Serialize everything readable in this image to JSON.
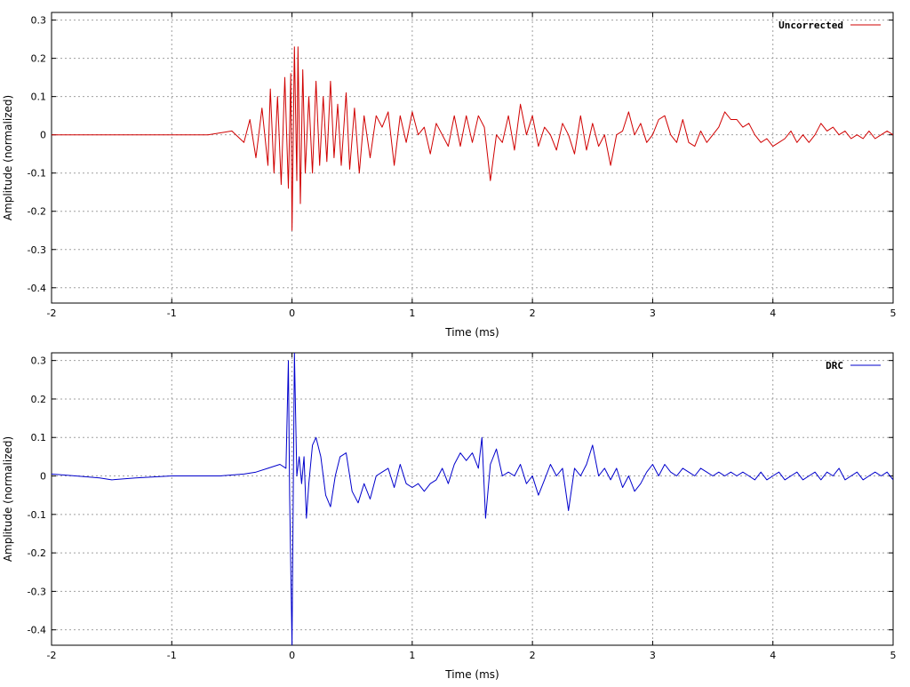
{
  "chart_data": [
    {
      "type": "line",
      "title": "",
      "xlabel": "Time (ms)",
      "ylabel": "Amplitude (normalized)",
      "xlim": [
        -2,
        5
      ],
      "ylim": [
        -0.44,
        0.32
      ],
      "xticks": [
        -2,
        -1,
        0,
        1,
        2,
        3,
        4,
        5
      ],
      "yticks": [
        0.3,
        0.2,
        0.1,
        0,
        -0.1,
        -0.2,
        -0.3,
        -0.4
      ],
      "xtick_labels": [
        "-2",
        "-1",
        "0",
        "1",
        "2",
        "3",
        "4",
        "5"
      ],
      "ytick_labels": [
        "0.3",
        "0.2",
        "0.1",
        "0",
        "-0.1",
        "-0.2",
        "-0.3",
        "-0.4"
      ],
      "grid": true,
      "legend_position": "top-right",
      "series": [
        {
          "name": "Uncorrected",
          "color": "#d00000",
          "points": [
            [
              -2.0,
              0.0
            ],
            [
              -1.35,
              0.0
            ],
            [
              -1.0,
              0.0
            ],
            [
              -0.7,
              0.0
            ],
            [
              -0.5,
              0.01
            ],
            [
              -0.4,
              -0.02
            ],
            [
              -0.35,
              0.04
            ],
            [
              -0.3,
              -0.06
            ],
            [
              -0.25,
              0.07
            ],
            [
              -0.2,
              -0.08
            ],
            [
              -0.18,
              0.12
            ],
            [
              -0.15,
              -0.1
            ],
            [
              -0.12,
              0.1
            ],
            [
              -0.09,
              -0.13
            ],
            [
              -0.06,
              0.15
            ],
            [
              -0.03,
              -0.14
            ],
            [
              -0.01,
              0.16
            ],
            [
              0.0,
              -0.25
            ],
            [
              0.02,
              0.23
            ],
            [
              0.04,
              -0.12
            ],
            [
              0.05,
              0.23
            ],
            [
              0.07,
              -0.18
            ],
            [
              0.09,
              0.17
            ],
            [
              0.11,
              -0.1
            ],
            [
              0.14,
              0.1
            ],
            [
              0.17,
              -0.1
            ],
            [
              0.2,
              0.14
            ],
            [
              0.23,
              -0.08
            ],
            [
              0.26,
              0.1
            ],
            [
              0.29,
              -0.07
            ],
            [
              0.32,
              0.14
            ],
            [
              0.35,
              -0.06
            ],
            [
              0.38,
              0.08
            ],
            [
              0.41,
              -0.08
            ],
            [
              0.45,
              0.11
            ],
            [
              0.48,
              -0.09
            ],
            [
              0.52,
              0.07
            ],
            [
              0.56,
              -0.1
            ],
            [
              0.6,
              0.05
            ],
            [
              0.65,
              -0.06
            ],
            [
              0.7,
              0.05
            ],
            [
              0.75,
              0.02
            ],
            [
              0.8,
              0.06
            ],
            [
              0.85,
              -0.08
            ],
            [
              0.9,
              0.05
            ],
            [
              0.95,
              -0.02
            ],
            [
              1.0,
              0.06
            ],
            [
              1.05,
              0.0
            ],
            [
              1.1,
              0.02
            ],
            [
              1.15,
              -0.05
            ],
            [
              1.2,
              0.03
            ],
            [
              1.3,
              -0.03
            ],
            [
              1.35,
              0.05
            ],
            [
              1.4,
              -0.03
            ],
            [
              1.45,
              0.05
            ],
            [
              1.5,
              -0.02
            ],
            [
              1.55,
              0.05
            ],
            [
              1.6,
              0.02
            ],
            [
              1.65,
              -0.12
            ],
            [
              1.7,
              0.0
            ],
            [
              1.75,
              -0.02
            ],
            [
              1.8,
              0.05
            ],
            [
              1.85,
              -0.04
            ],
            [
              1.9,
              0.08
            ],
            [
              1.95,
              0.0
            ],
            [
              2.0,
              0.05
            ],
            [
              2.05,
              -0.03
            ],
            [
              2.1,
              0.02
            ],
            [
              2.15,
              0.0
            ],
            [
              2.2,
              -0.04
            ],
            [
              2.25,
              0.03
            ],
            [
              2.3,
              0.0
            ],
            [
              2.35,
              -0.05
            ],
            [
              2.4,
              0.05
            ],
            [
              2.45,
              -0.04
            ],
            [
              2.5,
              0.03
            ],
            [
              2.55,
              -0.03
            ],
            [
              2.6,
              0.0
            ],
            [
              2.65,
              -0.08
            ],
            [
              2.7,
              0.0
            ],
            [
              2.75,
              0.01
            ],
            [
              2.8,
              0.06
            ],
            [
              2.85,
              0.0
            ],
            [
              2.9,
              0.03
            ],
            [
              2.95,
              -0.02
            ],
            [
              3.0,
              0.0
            ],
            [
              3.05,
              0.04
            ],
            [
              3.1,
              0.05
            ],
            [
              3.15,
              0.0
            ],
            [
              3.2,
              -0.02
            ],
            [
              3.25,
              0.04
            ],
            [
              3.3,
              -0.02
            ],
            [
              3.35,
              -0.03
            ],
            [
              3.4,
              0.01
            ],
            [
              3.45,
              -0.02
            ],
            [
              3.5,
              0.0
            ],
            [
              3.55,
              0.02
            ],
            [
              3.6,
              0.06
            ],
            [
              3.65,
              0.04
            ],
            [
              3.7,
              0.04
            ],
            [
              3.75,
              0.02
            ],
            [
              3.8,
              0.03
            ],
            [
              3.85,
              0.0
            ],
            [
              3.9,
              -0.02
            ],
            [
              3.95,
              -0.01
            ],
            [
              4.0,
              -0.03
            ],
            [
              4.05,
              -0.02
            ],
            [
              4.1,
              -0.01
            ],
            [
              4.15,
              0.01
            ],
            [
              4.2,
              -0.02
            ],
            [
              4.25,
              0.0
            ],
            [
              4.3,
              -0.02
            ],
            [
              4.35,
              0.0
            ],
            [
              4.4,
              0.03
            ],
            [
              4.45,
              0.01
            ],
            [
              4.5,
              0.02
            ],
            [
              4.55,
              0.0
            ],
            [
              4.6,
              0.01
            ],
            [
              4.65,
              -0.01
            ],
            [
              4.7,
              0.0
            ],
            [
              4.75,
              -0.01
            ],
            [
              4.8,
              0.01
            ],
            [
              4.85,
              -0.01
            ],
            [
              4.9,
              0.0
            ],
            [
              4.95,
              0.01
            ],
            [
              5.0,
              0.0
            ]
          ]
        }
      ]
    },
    {
      "type": "line",
      "title": "",
      "xlabel": "Time (ms)",
      "ylabel": "Amplitude (normalized)",
      "xlim": [
        -2,
        5
      ],
      "ylim": [
        -0.44,
        0.32
      ],
      "xticks": [
        -2,
        -1,
        0,
        1,
        2,
        3,
        4,
        5
      ],
      "yticks": [
        0.3,
        0.2,
        0.1,
        0,
        -0.1,
        -0.2,
        -0.3,
        -0.4
      ],
      "xtick_labels": [
        "-2",
        "-1",
        "0",
        "1",
        "2",
        "3",
        "4",
        "5"
      ],
      "ytick_labels": [
        "0.3",
        "0.2",
        "0.1",
        "0",
        "-0.1",
        "-0.2",
        "-0.3",
        "-0.4"
      ],
      "grid": true,
      "legend_position": "top-right",
      "series": [
        {
          "name": "DRC",
          "color": "#0000cc",
          "points": [
            [
              -2.0,
              0.005
            ],
            [
              -1.8,
              0.0
            ],
            [
              -1.6,
              -0.005
            ],
            [
              -1.5,
              -0.01
            ],
            [
              -1.3,
              -0.005
            ],
            [
              -1.0,
              0.0
            ],
            [
              -0.6,
              0.0
            ],
            [
              -0.4,
              0.005
            ],
            [
              -0.3,
              0.01
            ],
            [
              -0.2,
              0.02
            ],
            [
              -0.1,
              0.03
            ],
            [
              -0.05,
              0.02
            ],
            [
              -0.03,
              0.3
            ],
            [
              -0.02,
              -0.05
            ],
            [
              0.0,
              -0.44
            ],
            [
              0.02,
              0.32
            ],
            [
              0.04,
              0.0
            ],
            [
              0.06,
              0.05
            ],
            [
              0.08,
              -0.02
            ],
            [
              0.1,
              0.05
            ],
            [
              0.12,
              -0.11
            ],
            [
              0.14,
              -0.02
            ],
            [
              0.17,
              0.08
            ],
            [
              0.2,
              0.1
            ],
            [
              0.24,
              0.05
            ],
            [
              0.28,
              -0.05
            ],
            [
              0.32,
              -0.08
            ],
            [
              0.36,
              0.0
            ],
            [
              0.4,
              0.05
            ],
            [
              0.45,
              0.06
            ],
            [
              0.5,
              -0.04
            ],
            [
              0.55,
              -0.07
            ],
            [
              0.6,
              -0.02
            ],
            [
              0.65,
              -0.06
            ],
            [
              0.7,
              0.0
            ],
            [
              0.75,
              0.01
            ],
            [
              0.8,
              0.02
            ],
            [
              0.85,
              -0.03
            ],
            [
              0.9,
              0.03
            ],
            [
              0.95,
              -0.02
            ],
            [
              1.0,
              -0.03
            ],
            [
              1.05,
              -0.02
            ],
            [
              1.1,
              -0.04
            ],
            [
              1.15,
              -0.02
            ],
            [
              1.2,
              -0.01
            ],
            [
              1.25,
              0.02
            ],
            [
              1.3,
              -0.02
            ],
            [
              1.35,
              0.03
            ],
            [
              1.4,
              0.06
            ],
            [
              1.45,
              0.04
            ],
            [
              1.5,
              0.06
            ],
            [
              1.55,
              0.02
            ],
            [
              1.58,
              0.1
            ],
            [
              1.61,
              -0.11
            ],
            [
              1.65,
              0.03
            ],
            [
              1.7,
              0.07
            ],
            [
              1.75,
              0.0
            ],
            [
              1.8,
              0.01
            ],
            [
              1.85,
              0.0
            ],
            [
              1.9,
              0.03
            ],
            [
              1.95,
              -0.02
            ],
            [
              2.0,
              0.0
            ],
            [
              2.05,
              -0.05
            ],
            [
              2.1,
              -0.01
            ],
            [
              2.15,
              0.03
            ],
            [
              2.2,
              0.0
            ],
            [
              2.25,
              0.02
            ],
            [
              2.3,
              -0.09
            ],
            [
              2.35,
              0.02
            ],
            [
              2.4,
              0.0
            ],
            [
              2.45,
              0.03
            ],
            [
              2.5,
              0.08
            ],
            [
              2.55,
              0.0
            ],
            [
              2.6,
              0.02
            ],
            [
              2.65,
              -0.01
            ],
            [
              2.7,
              0.02
            ],
            [
              2.75,
              -0.03
            ],
            [
              2.8,
              0.0
            ],
            [
              2.85,
              -0.04
            ],
            [
              2.9,
              -0.02
            ],
            [
              2.95,
              0.01
            ],
            [
              3.0,
              0.03
            ],
            [
              3.05,
              0.0
            ],
            [
              3.1,
              0.03
            ],
            [
              3.15,
              0.01
            ],
            [
              3.2,
              0.0
            ],
            [
              3.25,
              0.02
            ],
            [
              3.3,
              0.01
            ],
            [
              3.35,
              0.0
            ],
            [
              3.4,
              0.02
            ],
            [
              3.45,
              0.01
            ],
            [
              3.5,
              0.0
            ],
            [
              3.55,
              0.01
            ],
            [
              3.6,
              0.0
            ],
            [
              3.65,
              0.01
            ],
            [
              3.7,
              0.0
            ],
            [
              3.75,
              0.01
            ],
            [
              3.8,
              0.0
            ],
            [
              3.85,
              -0.01
            ],
            [
              3.9,
              0.01
            ],
            [
              3.95,
              -0.01
            ],
            [
              4.0,
              0.0
            ],
            [
              4.05,
              0.01
            ],
            [
              4.1,
              -0.01
            ],
            [
              4.15,
              0.0
            ],
            [
              4.2,
              0.01
            ],
            [
              4.25,
              -0.01
            ],
            [
              4.3,
              0.0
            ],
            [
              4.35,
              0.01
            ],
            [
              4.4,
              -0.01
            ],
            [
              4.45,
              0.01
            ],
            [
              4.5,
              0.0
            ],
            [
              4.55,
              0.02
            ],
            [
              4.6,
              -0.01
            ],
            [
              4.65,
              0.0
            ],
            [
              4.7,
              0.01
            ],
            [
              4.75,
              -0.01
            ],
            [
              4.8,
              0.0
            ],
            [
              4.85,
              0.01
            ],
            [
              4.9,
              0.0
            ],
            [
              4.95,
              0.01
            ],
            [
              5.0,
              -0.01
            ]
          ]
        }
      ]
    }
  ]
}
